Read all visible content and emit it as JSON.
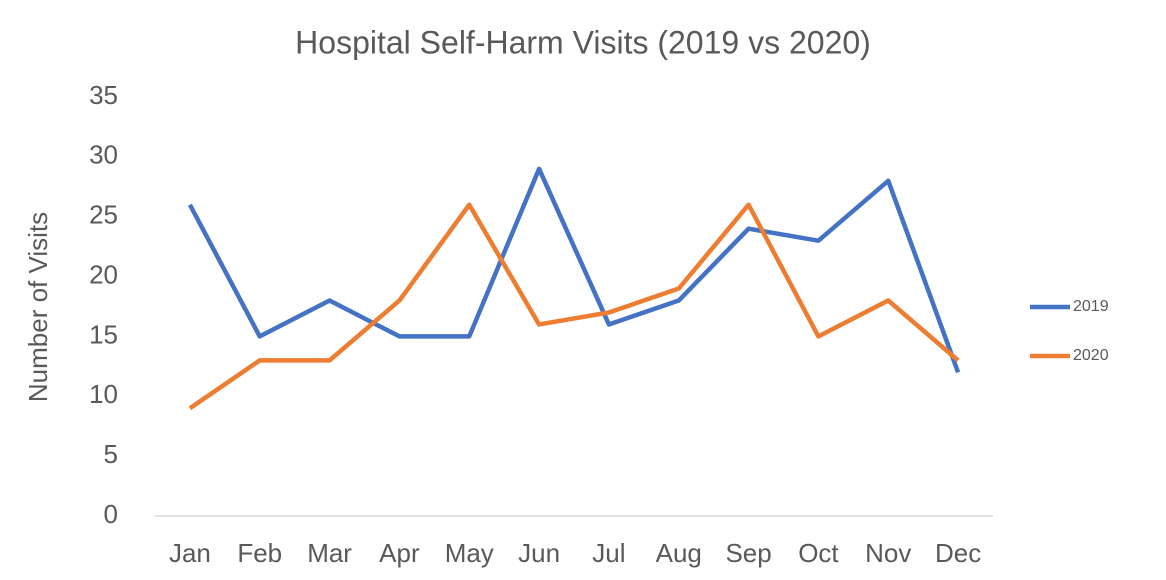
{
  "chart_data": {
    "type": "line",
    "title": "Hospital Self-Harm Visits (2019 vs 2020)",
    "y_label": "Number of Visits",
    "categories": [
      "Jan",
      "Feb",
      "Mar",
      "Apr",
      "May",
      "Jun",
      "Jul",
      "Aug",
      "Sep",
      "Oct",
      "Nov",
      "Dec"
    ],
    "series": [
      {
        "name": "2019",
        "color": "#4472c4",
        "values": [
          26,
          15,
          18,
          15,
          15,
          29,
          16,
          18,
          24,
          23,
          28,
          12
        ]
      },
      {
        "name": "2020",
        "color": "#ed7d31",
        "values": [
          9,
          13,
          13,
          18,
          26,
          16,
          17,
          19,
          26,
          15,
          18,
          13
        ]
      }
    ],
    "ylim": [
      0,
      35
    ],
    "yticks": [
      0,
      5,
      10,
      15,
      20,
      25,
      30,
      35
    ],
    "grid": false,
    "legend": "right"
  }
}
